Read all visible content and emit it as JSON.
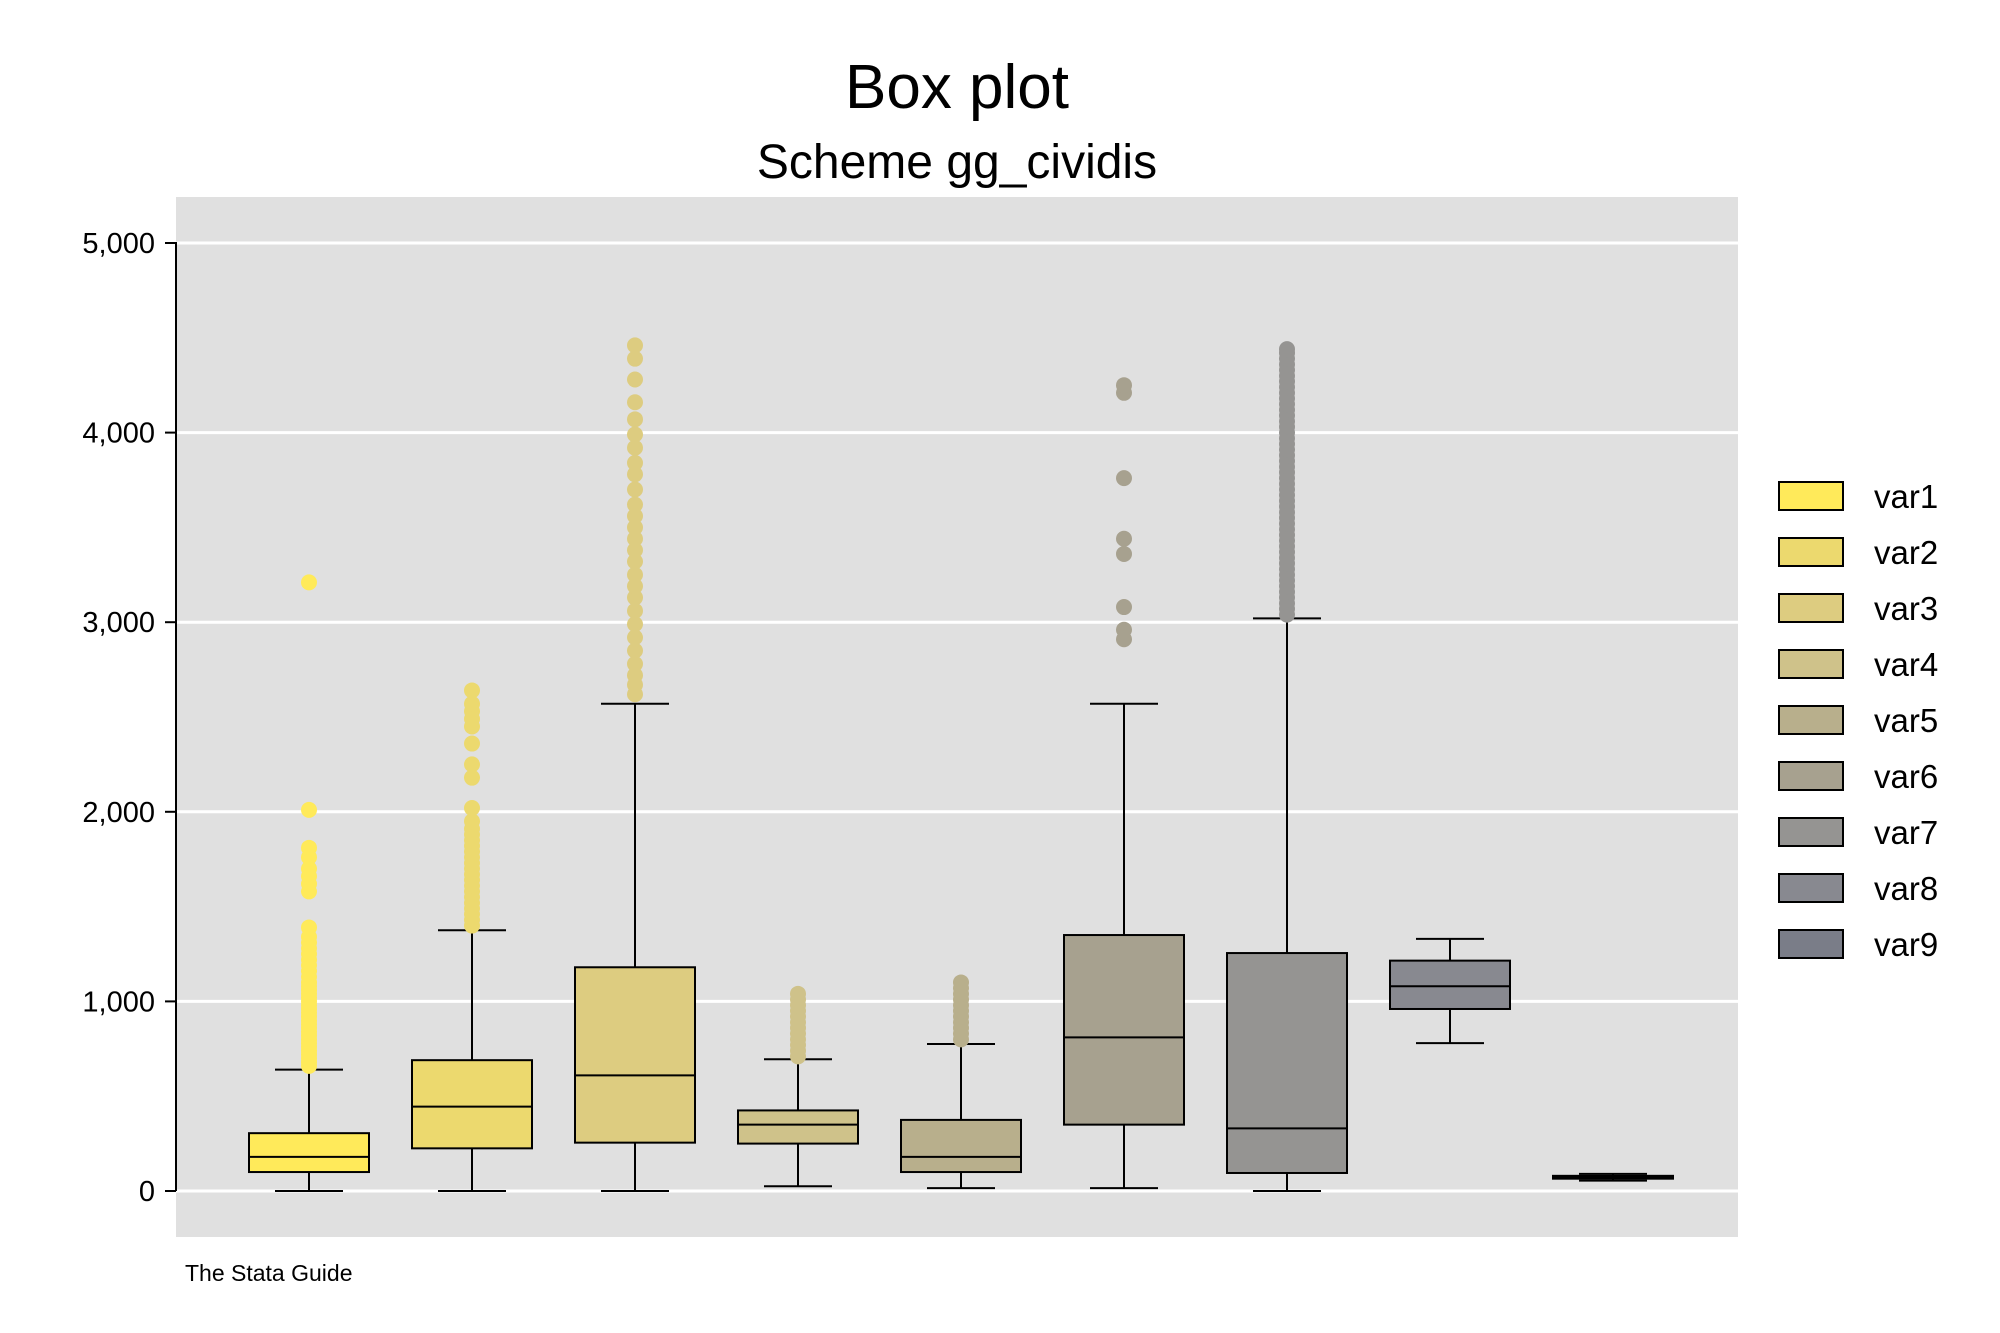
{
  "chart_data": {
    "type": "box",
    "title": "Box plot",
    "subtitle": "Scheme gg_cividis",
    "note": "The Stata Guide",
    "xlabel": "",
    "ylabel": "",
    "ylim": [
      -500,
      5250
    ],
    "yticks": [
      0,
      1000,
      2000,
      3000,
      4000,
      5000
    ],
    "ytick_labels": [
      "0",
      "1,000",
      "2,000",
      "3,000",
      "4,000",
      "5,000"
    ],
    "grid": true,
    "legend_position": "right",
    "series": [
      {
        "name": "var1",
        "color": "#FFEA5A",
        "whisker_low": 0,
        "q1": 100,
        "median": 180,
        "q3": 305,
        "whisker_high": 640,
        "outliers": [
          660,
          680,
          700,
          720,
          740,
          760,
          780,
          800,
          820,
          840,
          860,
          880,
          900,
          920,
          940,
          960,
          980,
          1000,
          1020,
          1040,
          1060,
          1080,
          1100,
          1130,
          1160,
          1190,
          1220,
          1250,
          1280,
          1310,
          1340,
          1390,
          1580,
          1620,
          1660,
          1700,
          1760,
          1810,
          2010,
          3210
        ]
      },
      {
        "name": "var2",
        "color": "#ECD96E",
        "whisker_low": 0,
        "q1": 225,
        "median": 445,
        "q3": 690,
        "whisker_high": 1375,
        "outliers": [
          1400,
          1430,
          1460,
          1490,
          1520,
          1550,
          1580,
          1610,
          1640,
          1670,
          1700,
          1730,
          1760,
          1790,
          1820,
          1850,
          1880,
          1910,
          1950,
          2020,
          2180,
          2250,
          2360,
          2450,
          2490,
          2530,
          2570,
          2640
        ]
      },
      {
        "name": "var3",
        "color": "#DDCC80",
        "whisker_low": 0,
        "q1": 255,
        "median": 610,
        "q3": 1180,
        "whisker_high": 2570,
        "outliers": [
          2620,
          2670,
          2720,
          2780,
          2850,
          2920,
          2990,
          3060,
          3130,
          3190,
          3250,
          3320,
          3380,
          3440,
          3500,
          3560,
          3620,
          3700,
          3780,
          3840,
          3920,
          3990,
          4070,
          4160,
          4280,
          4390,
          4460
        ]
      },
      {
        "name": "var4",
        "color": "#CFC28A",
        "whisker_low": 25,
        "q1": 250,
        "median": 350,
        "q3": 425,
        "whisker_high": 695,
        "outliers": [
          710,
          740,
          770,
          800,
          830,
          860,
          890,
          920,
          950,
          980,
          1010,
          1040
        ]
      },
      {
        "name": "var5",
        "color": "#B8AF8C",
        "whisker_low": 15,
        "q1": 100,
        "median": 180,
        "q3": 375,
        "whisker_high": 775,
        "outliers": [
          800,
          830,
          860,
          890,
          920,
          950,
          980,
          1010,
          1040,
          1070,
          1100
        ]
      },
      {
        "name": "var6",
        "color": "#A7A18F",
        "whisker_low": 15,
        "q1": 350,
        "median": 810,
        "q3": 1350,
        "whisker_high": 2570,
        "outliers": [
          2910,
          2960,
          3080,
          3360,
          3440,
          3760,
          4210,
          4250
        ]
      },
      {
        "name": "var7",
        "color": "#959492",
        "whisker_low": 0,
        "q1": 95,
        "median": 330,
        "q3": 1255,
        "whisker_high": 3020,
        "outliers": [
          3040,
          3070,
          3100,
          3130,
          3160,
          3190,
          3220,
          3250,
          3280,
          3310,
          3340,
          3370,
          3400,
          3430,
          3460,
          3490,
          3520,
          3550,
          3580,
          3610,
          3640,
          3670,
          3700,
          3730,
          3760,
          3790,
          3820,
          3850,
          3880,
          3910,
          3940,
          3970,
          4000,
          4030,
          4060,
          4090,
          4120,
          4150,
          4180,
          4210,
          4240,
          4270,
          4300,
          4330,
          4360,
          4390,
          4420,
          4440
        ]
      },
      {
        "name": "var8",
        "color": "#888990",
        "whisker_low": 780,
        "q1": 960,
        "median": 1080,
        "q3": 1215,
        "whisker_high": 1330,
        "outliers": []
      },
      {
        "name": "var9",
        "color": "#7A7D88",
        "whisker_low": 55,
        "q1": 65,
        "median": 72,
        "q3": 80,
        "whisker_high": 90,
        "outliers": []
      }
    ]
  },
  "colors": {
    "plot_background": "#E0E0E0",
    "grid": "#FFFFFF",
    "page_background": "#FFFFFF"
  }
}
